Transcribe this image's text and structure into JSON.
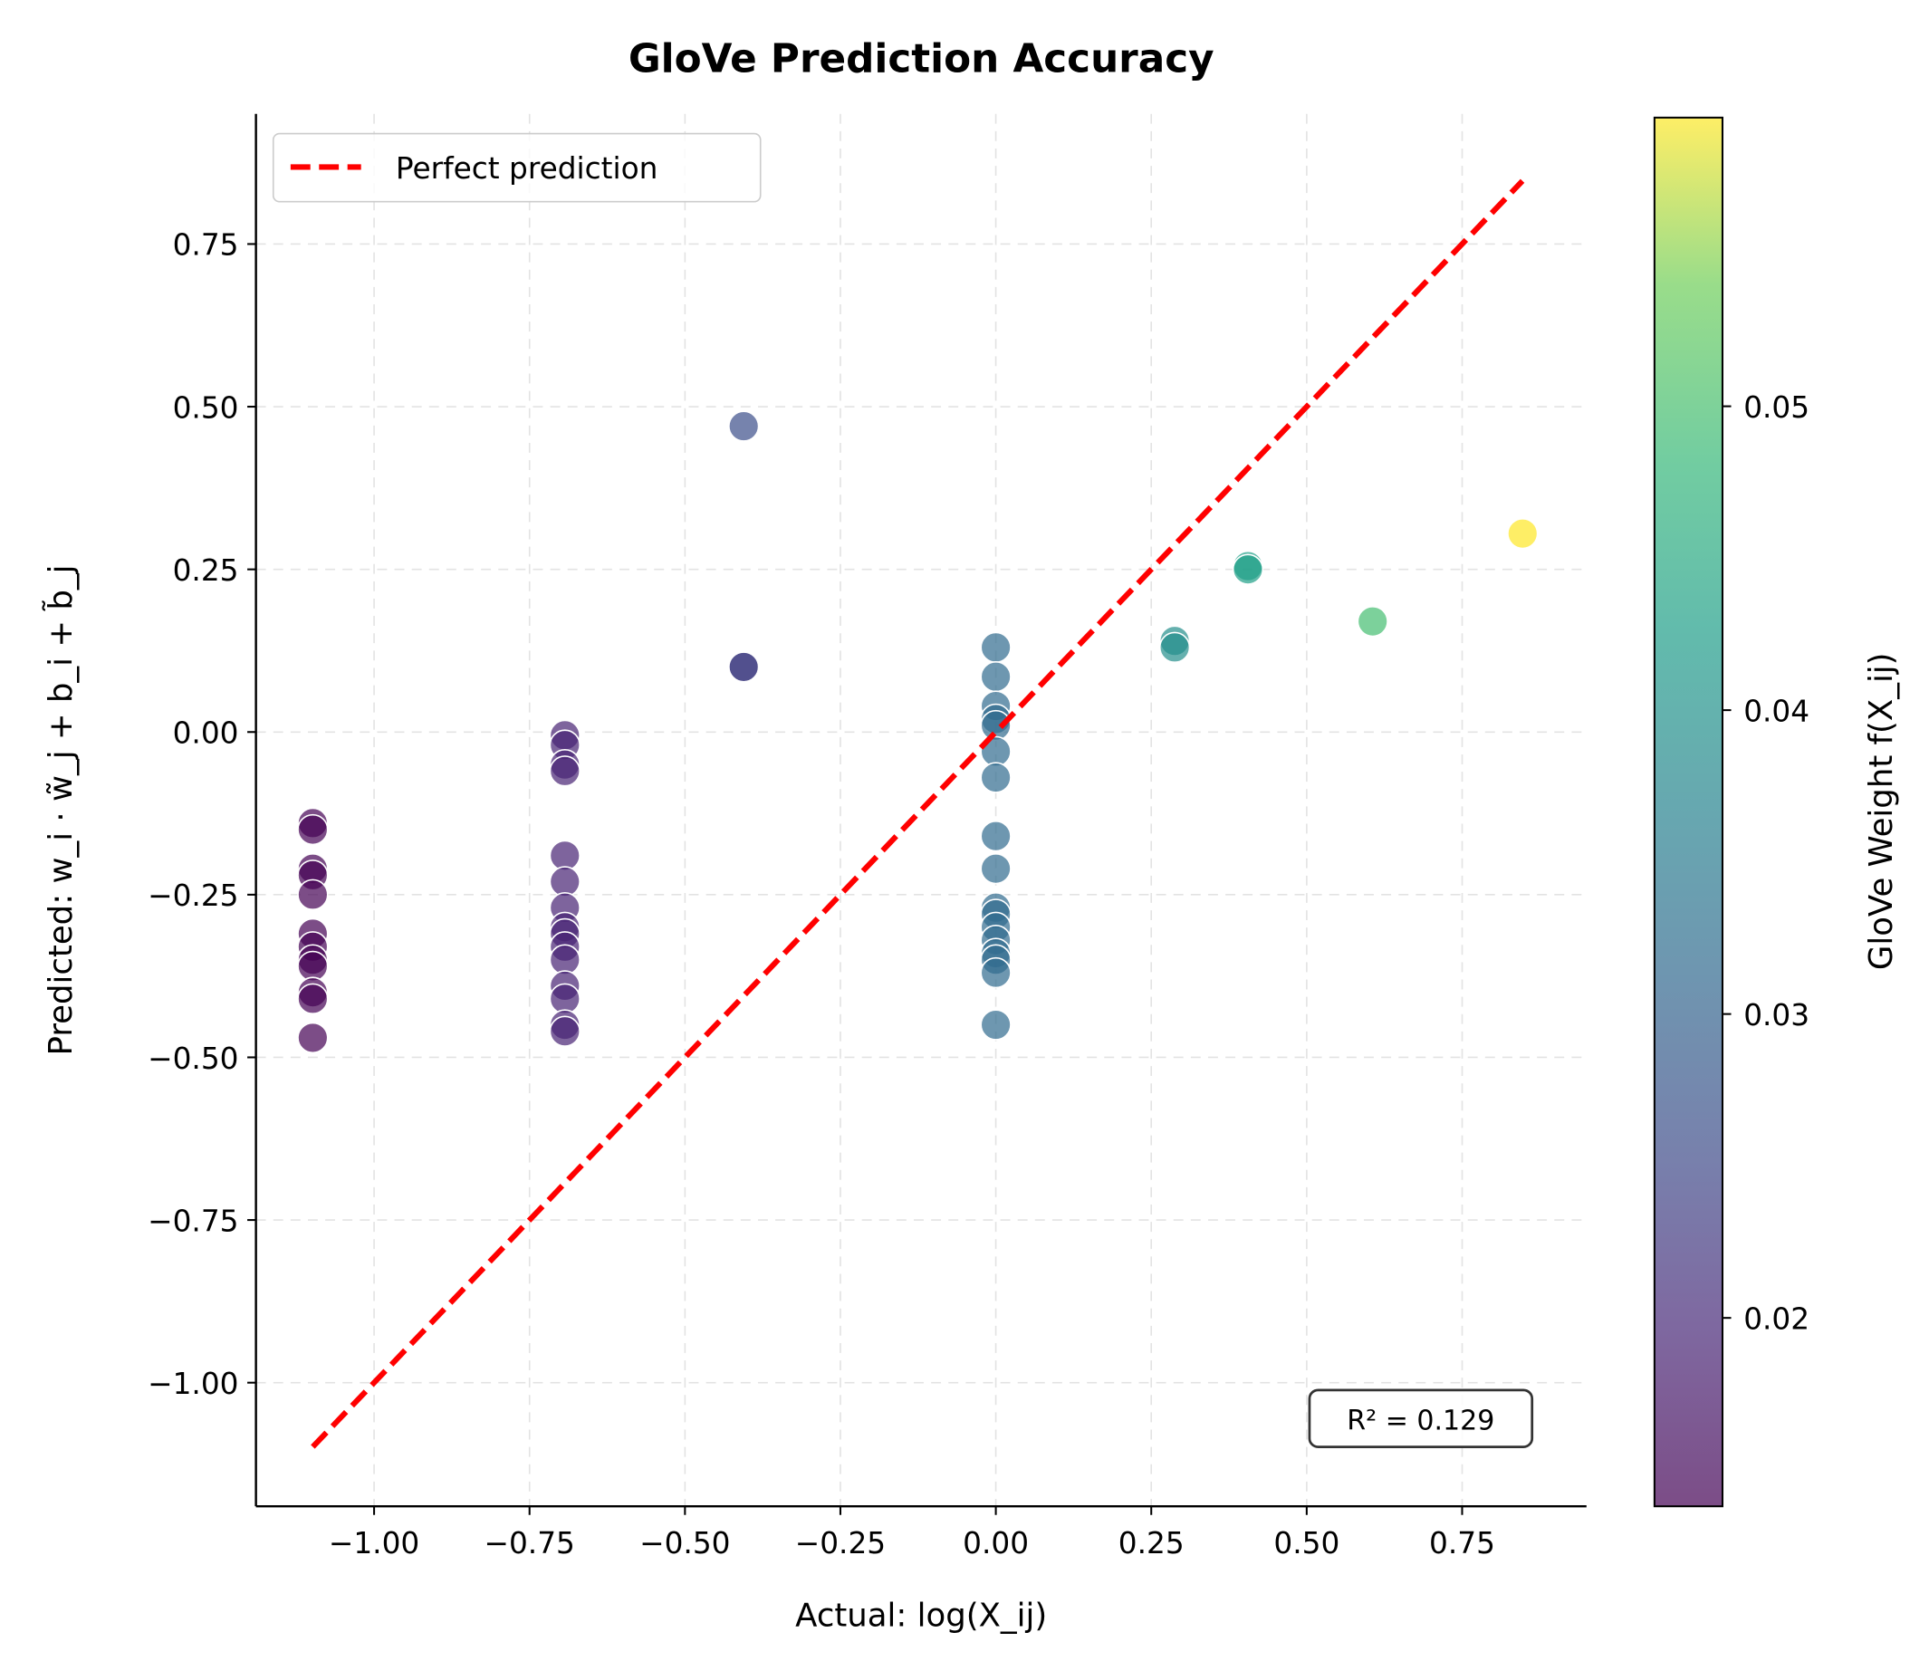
{
  "chart_data": {
    "type": "scatter",
    "title": "GloVe Prediction Accuracy",
    "xlabel": "Actual: log(X_ij)",
    "ylabel": "Predicted: w_i · w̃_j + b_i + b̃_j",
    "xlim": [
      -1.19,
      0.95
    ],
    "ylim": [
      -1.19,
      0.95
    ],
    "xticks": [
      "−1.00",
      "−0.75",
      "−0.50",
      "−0.25",
      "0.00",
      "0.25",
      "0.50",
      "0.75"
    ],
    "yticks": [
      "−1.00",
      "−0.75",
      "−0.50",
      "−0.25",
      "0.00",
      "0.25",
      "0.50",
      "0.75"
    ],
    "grid": true,
    "legend": {
      "placement": "top-left",
      "entries": [
        "Perfect prediction"
      ]
    },
    "reference_line": {
      "label": "Perfect prediction",
      "color": "#ff0000",
      "style": "dashed",
      "from": [
        -1.0986,
        -1.0986
      ],
      "to": [
        0.847,
        0.847
      ]
    },
    "annotation": "R² = 0.129",
    "colorbar": {
      "label": "GloVe Weight f(X_ij)",
      "colormap": "viridis",
      "range": [
        0.0138,
        0.0595
      ],
      "ticks": [
        "0.02",
        "0.03",
        "0.04",
        "0.05"
      ]
    },
    "groups": [
      {
        "x": -1.0986,
        "weight": 0.0138,
        "y": [
          -0.14,
          -0.15,
          -0.21,
          -0.22,
          -0.25,
          -0.31,
          -0.33,
          -0.35,
          -0.36,
          -0.4,
          -0.41,
          -0.47
        ]
      },
      {
        "x": -0.6931,
        "weight": 0.0187,
        "y": [
          -0.005,
          -0.02,
          -0.05,
          -0.06,
          -0.19,
          -0.23,
          -0.27,
          -0.3,
          -0.31,
          -0.33,
          -0.35,
          -0.39,
          -0.41,
          -0.45,
          -0.46
        ]
      },
      {
        "x": -0.4055,
        "weight": 0.0232,
        "y": [
          0.1,
          0.1
        ]
      },
      {
        "x": -0.4055,
        "weight": 0.026,
        "y": [
          0.47
        ]
      },
      {
        "x": 0.0,
        "weight": 0.0315,
        "y": [
          0.13,
          0.085,
          0.04,
          0.02,
          0.01,
          -0.03,
          -0.07,
          -0.16,
          -0.21,
          -0.27,
          -0.28,
          -0.3,
          -0.32,
          -0.34,
          -0.35,
          -0.37,
          -0.45
        ]
      },
      {
        "x": 0.2877,
        "weight": 0.039,
        "y": [
          0.14,
          0.13
        ]
      },
      {
        "x": 0.4055,
        "weight": 0.0427,
        "y": [
          0.255,
          0.25
        ]
      },
      {
        "x": 0.6061,
        "weight": 0.0496,
        "y": [
          0.17
        ]
      },
      {
        "x": 0.8473,
        "weight": 0.0595,
        "y": [
          0.305
        ]
      }
    ]
  }
}
